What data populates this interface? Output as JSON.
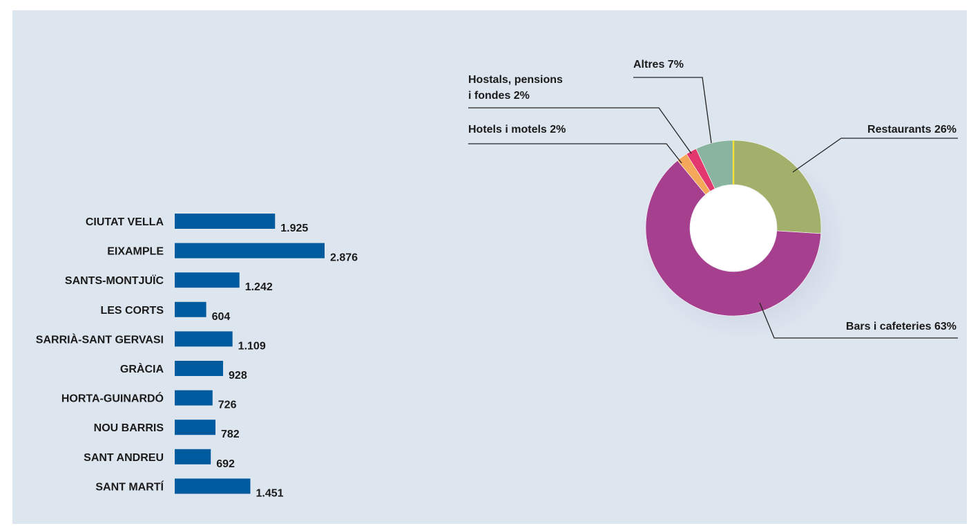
{
  "colors": {
    "bar": "#005a9e",
    "background": "#dde5ef",
    "restaurants": "#a2b06b",
    "bars_cafeteries": "#a63f8e",
    "hotels": "#f5a85a",
    "hostals": "#e2386e",
    "altres": "#88b4a0",
    "divider": "#f2e23a"
  },
  "chart_data": [
    {
      "type": "bar",
      "orientation": "horizontal",
      "categories": [
        "CIUTAT VELLA",
        "EIXAMPLE",
        "SANTS-MONTJUÏC",
        "LES CORTS",
        "SARRIÀ-SANT GERVASI",
        "GRÀCIA",
        "HORTA-GUINARDÓ",
        "NOU BARRIS",
        "SANT ANDREU",
        "SANT MARTÍ"
      ],
      "values": [
        1925,
        2876,
        1242,
        604,
        1109,
        928,
        726,
        782,
        692,
        1451
      ],
      "value_labels": [
        "1.925",
        "2.876",
        "1.242",
        "604",
        "1.109",
        "928",
        "726",
        "782",
        "692",
        "1.451"
      ],
      "grid": false
    },
    {
      "type": "pie",
      "style": "donut",
      "slices": [
        {
          "label": "Restaurants 26%",
          "value": 26
        },
        {
          "label": "Bars i cafeteries 63%",
          "value": 63
        },
        {
          "label": "Hotels i motels 2%",
          "value": 2
        },
        {
          "label": "Hostals, pensions",
          "label2": "i fondes 2%",
          "value": 2
        },
        {
          "label": "Altres 7%",
          "value": 7
        }
      ]
    }
  ]
}
